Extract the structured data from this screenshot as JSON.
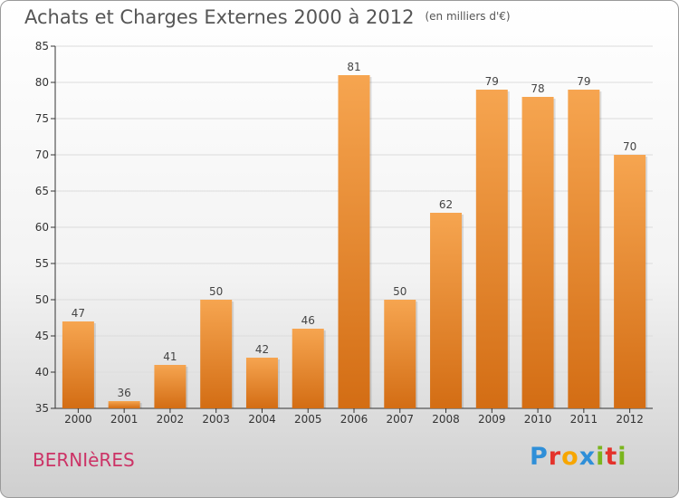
{
  "header": {
    "title": "Achats et Charges Externes 2000 à 2012",
    "unit": "(en milliers d'€)"
  },
  "footer": {
    "town": "BERNIèRES",
    "brand": "Proxiti"
  },
  "brand_colors": [
    "#2f8fd8",
    "#e4322b",
    "#f7a600",
    "#2f8fd8",
    "#7ab51d",
    "#e4322b",
    "#7ab51d"
  ],
  "chart_data": {
    "type": "bar",
    "title": "Achats et Charges Externes 2000 à 2012",
    "subtitle": "(en milliers d'€)",
    "categories": [
      "2000",
      "2001",
      "2002",
      "2003",
      "2004",
      "2005",
      "2006",
      "2007",
      "2008",
      "2009",
      "2010",
      "2011",
      "2012"
    ],
    "values": [
      47,
      36,
      41,
      50,
      42,
      46,
      81,
      50,
      62,
      79,
      78,
      79,
      70
    ],
    "ylim": [
      35,
      85
    ],
    "yticks": [
      35,
      40,
      45,
      50,
      55,
      60,
      65,
      70,
      75,
      80,
      85
    ],
    "grid": true,
    "bar_color_top": "#f6a550",
    "bar_color_bottom": "#d36d14"
  }
}
